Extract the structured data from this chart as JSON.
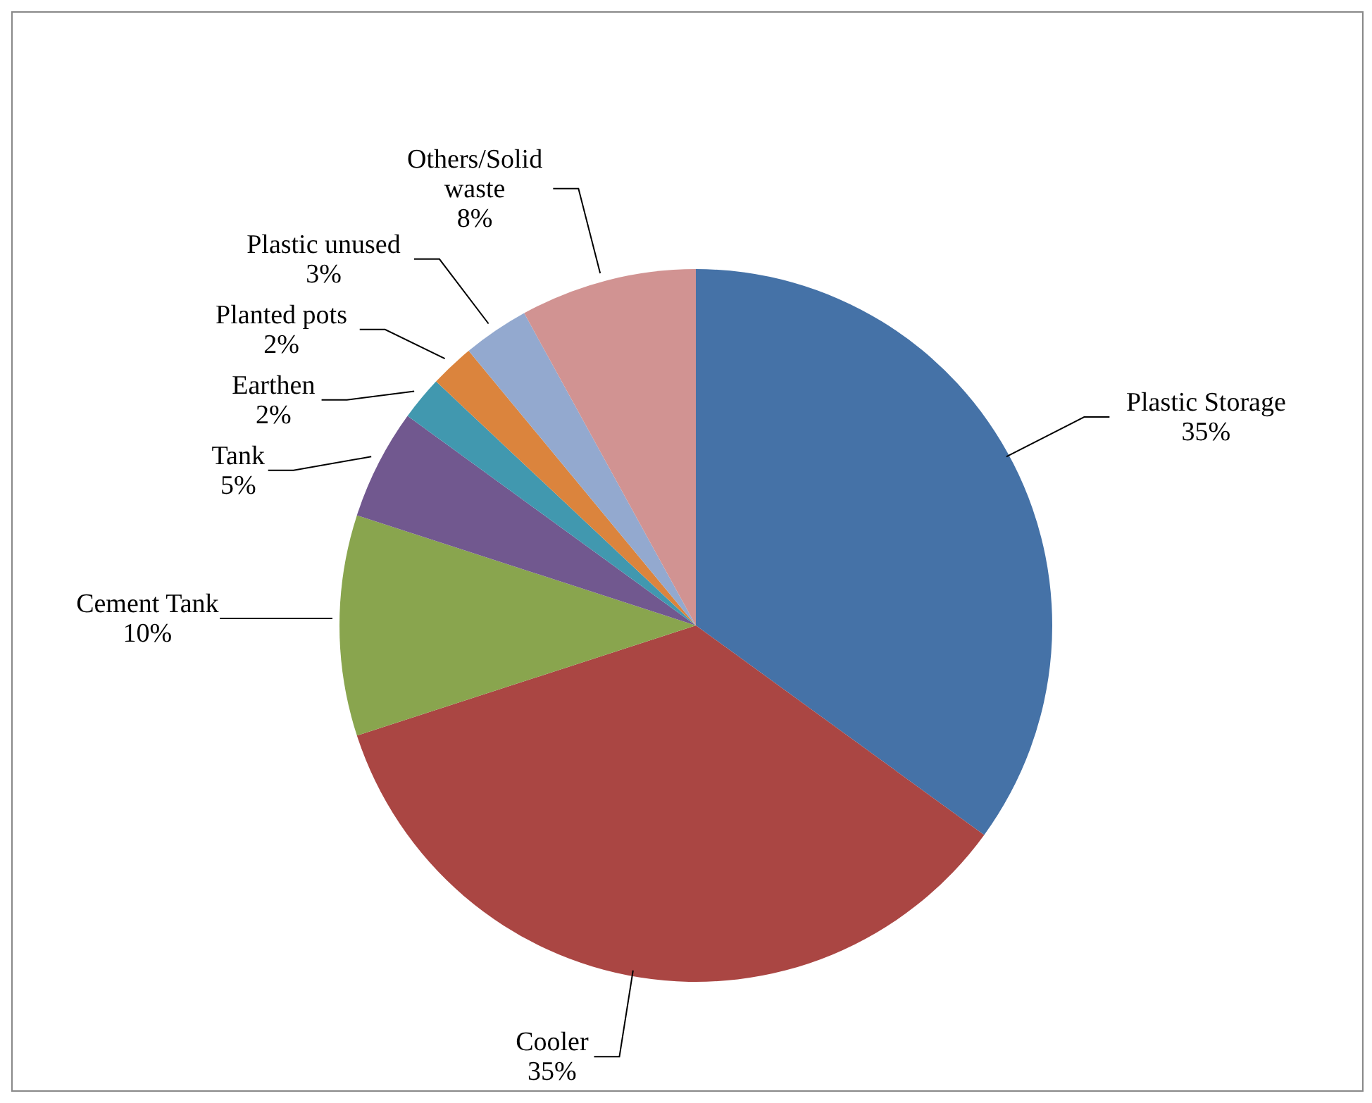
{
  "chart_data": {
    "type": "pie",
    "categories": [
      "Plastic Storage",
      "Cooler",
      "Cement Tank",
      "Tank",
      "Earthen",
      "Planted pots",
      "Plastic unused",
      "Others/Solid waste"
    ],
    "values": [
      35,
      35,
      10,
      5,
      2,
      2,
      3,
      8
    ],
    "value_labels": [
      "35%",
      "35%",
      "10%",
      "5%",
      "2%",
      "2%",
      "3%",
      "8%"
    ],
    "colors": [
      "#4572a7",
      "#aa4643",
      "#89a54e",
      "#71588f",
      "#4198af",
      "#db843d",
      "#93a9cf",
      "#d19392"
    ],
    "legend": false
  }
}
